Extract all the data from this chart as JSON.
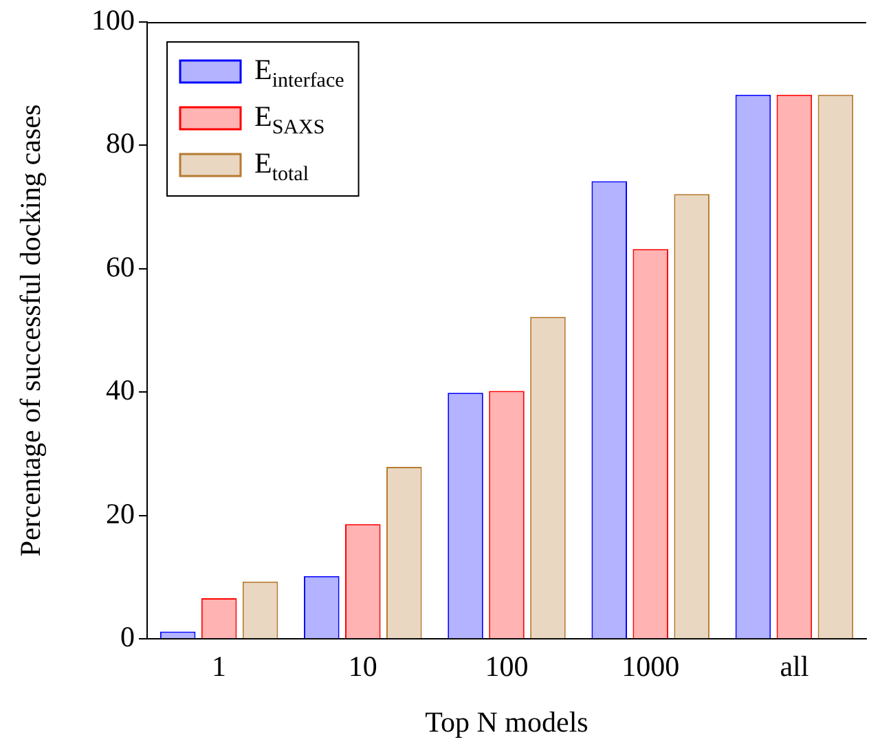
{
  "chart_data": {
    "type": "bar",
    "xlabel": "Top N models",
    "ylabel": "Percentage of successful docking cases",
    "categories": [
      "1",
      "10",
      "100",
      "1000",
      "all"
    ],
    "series": [
      {
        "name": "E$_{interface}$",
        "color": "#b3b3ff",
        "values": [
          1.2,
          10.2,
          39.9,
          74.2,
          88.2
        ]
      },
      {
        "name": "E$_{SAXS}$",
        "color": "#ffb3b3",
        "values": [
          6.6,
          18.6,
          40.2,
          63.2,
          88.2
        ]
      },
      {
        "name": "E$_{total}$",
        "color": "#e9d7c1",
        "values": [
          9.3,
          27.9,
          52.2,
          72.1,
          88.2
        ]
      }
    ],
    "ylim": [
      0,
      100
    ],
    "yticks": [
      0,
      20,
      40,
      60,
      80,
      100
    ],
    "grid": false,
    "legend": "top left"
  }
}
